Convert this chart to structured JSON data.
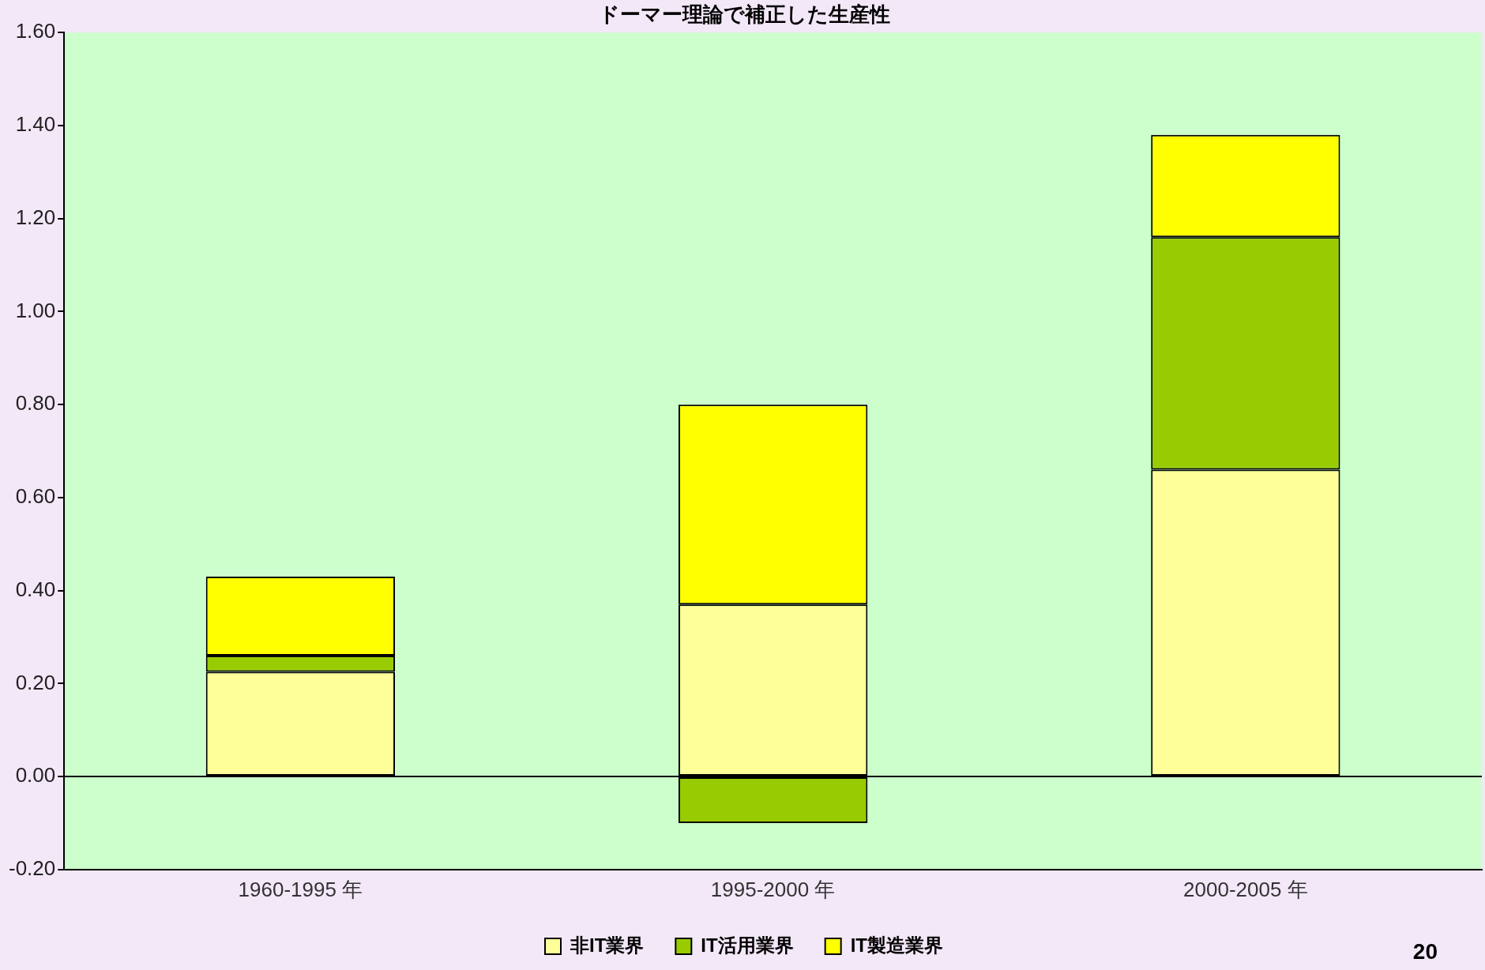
{
  "chart_data": {
    "type": "bar",
    "title": "ドーマー理論で補正した生産性",
    "categories": [
      "1960-1995 年",
      "1995-2000 年",
      "2000-2005 年"
    ],
    "stacked": true,
    "series": [
      {
        "name": "非IT業界",
        "color": "#ffff99",
        "values": [
          0.225,
          0.37,
          0.66
        ]
      },
      {
        "name": "IT活用業界",
        "color": "#99cc00",
        "values": [
          0.035,
          -0.1,
          0.5
        ]
      },
      {
        "name": "IT製造業界",
        "color": "#ffff00",
        "values": [
          0.17,
          0.43,
          0.22
        ]
      }
    ],
    "ylim": [
      -0.2,
      1.6
    ],
    "yticks": [
      {
        "value": -0.2,
        "label": "-0.20"
      },
      {
        "value": 0,
        "label": "0.00"
      },
      {
        "value": 0.2,
        "label": "0.20"
      },
      {
        "value": 0.4,
        "label": "0.40"
      },
      {
        "value": 0.6,
        "label": "0.60"
      },
      {
        "value": 0.8,
        "label": "0.80"
      },
      {
        "value": 1,
        "label": "1.00"
      },
      {
        "value": 1.2,
        "label": "1.20"
      },
      {
        "value": 1.4,
        "label": "1.40"
      },
      {
        "value": 1.6,
        "label": "1.60"
      }
    ],
    "legend": "bottom",
    "annotations": [
      "20"
    ]
  }
}
